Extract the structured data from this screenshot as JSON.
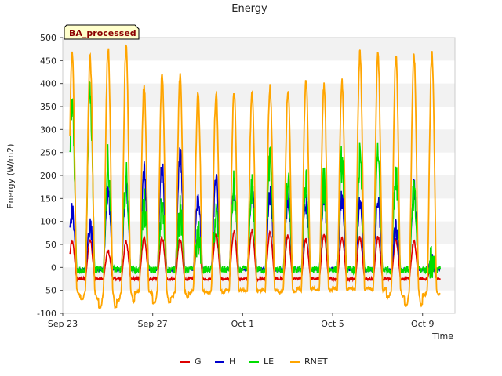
{
  "chart_data": {
    "type": "line",
    "title": "Energy",
    "xlabel": "Time",
    "ylabel": "Energy (W/m2)",
    "badge": "BA_processed",
    "xlim": [
      0,
      21.8
    ],
    "ylim": [
      -100,
      500
    ],
    "yticks": [
      -100,
      -50,
      0,
      50,
      100,
      150,
      200,
      250,
      300,
      350,
      400,
      450,
      500
    ],
    "xticks": [
      {
        "x": 0,
        "label": "Sep 23"
      },
      {
        "x": 5,
        "label": "Sep 27"
      },
      {
        "x": 10,
        "label": "Oct 1"
      },
      {
        "x": 15,
        "label": "Oct 5"
      },
      {
        "x": 20,
        "label": "Oct 9"
      }
    ],
    "grid": "horizontal bands",
    "legend_position": "bottom-center",
    "days": [
      0.5,
      1.5,
      2.5,
      3.5,
      4.5,
      5.5,
      6.5,
      7.5,
      8.5,
      9.5,
      10.5,
      11.5,
      12.5,
      13.5,
      14.5,
      15.5,
      16.5,
      17.5,
      18.5,
      19.5,
      20.5
    ],
    "series": [
      {
        "name": "G",
        "color": "#dd0000",
        "night": -25,
        "peaks": [
          55,
          60,
          35,
          55,
          65,
          65,
          60,
          70,
          75,
          75,
          80,
          75,
          70,
          60,
          70,
          65,
          65,
          65,
          60,
          55,
          10
        ]
      },
      {
        "name": "H",
        "color": "#0000cc",
        "night": -5,
        "peaks": [
          120,
          90,
          165,
          180,
          210,
          225,
          245,
          155,
          190,
          170,
          175,
          160,
          150,
          140,
          160,
          150,
          140,
          140,
          85,
          170,
          10
        ]
      },
      {
        "name": "LE",
        "color": "#00dd00",
        "night": -5,
        "peaks": [
          360,
          375,
          225,
          190,
          130,
          125,
          115,
          65,
          110,
          170,
          160,
          230,
          175,
          175,
          180,
          230,
          230,
          235,
          210,
          150,
          10
        ]
      },
      {
        "name": "RNET",
        "color": "#ffa500",
        "night": -50,
        "peaks": [
          465,
          457,
          480,
          480,
          395,
          418,
          415,
          378,
          378,
          380,
          375,
          395,
          390,
          410,
          395,
          405,
          465,
          465,
          465,
          465,
          465
        ],
        "troughs": [
          -60,
          -70,
          -90,
          -75,
          -55,
          -80,
          -65,
          -55,
          -55,
          -50,
          -50,
          -50,
          -55,
          -45,
          -50,
          -45,
          -45,
          -45,
          -65,
          -85,
          -60
        ]
      }
    ]
  }
}
